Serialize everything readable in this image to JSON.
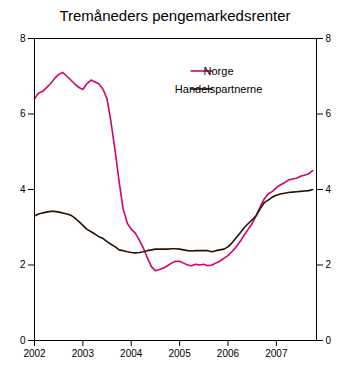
{
  "chart_data": {
    "type": "line",
    "title": "Tremåneders pengemarkedsrenter",
    "x": [
      2002.0,
      2002.08,
      2002.17,
      2002.25,
      2002.33,
      2002.42,
      2002.5,
      2002.58,
      2002.67,
      2002.75,
      2002.83,
      2002.92,
      2003.0,
      2003.08,
      2003.17,
      2003.25,
      2003.33,
      2003.42,
      2003.5,
      2003.58,
      2003.67,
      2003.75,
      2003.83,
      2003.92,
      2004.0,
      2004.08,
      2004.17,
      2004.25,
      2004.33,
      2004.42,
      2004.5,
      2004.58,
      2004.67,
      2004.75,
      2004.83,
      2004.92,
      2005.0,
      2005.08,
      2005.17,
      2005.25,
      2005.33,
      2005.42,
      2005.5,
      2005.58,
      2005.67,
      2005.75,
      2005.83,
      2005.92,
      2006.0,
      2006.08,
      2006.17,
      2006.25,
      2006.33,
      2006.42,
      2006.5,
      2006.58,
      2006.67,
      2006.75,
      2006.83,
      2006.92,
      2007.0,
      2007.08,
      2007.17,
      2007.25,
      2007.33,
      2007.42,
      2007.5,
      2007.58,
      2007.67,
      2007.75
    ],
    "series": [
      {
        "name": "Norge",
        "color": "#d4006e",
        "values": [
          6.4,
          6.55,
          6.6,
          6.7,
          6.8,
          6.95,
          7.05,
          7.1,
          7.0,
          6.9,
          6.8,
          6.7,
          6.65,
          6.8,
          6.9,
          6.85,
          6.8,
          6.65,
          6.4,
          5.8,
          5.0,
          4.2,
          3.5,
          3.1,
          2.95,
          2.85,
          2.65,
          2.45,
          2.2,
          1.95,
          1.85,
          1.88,
          1.92,
          1.98,
          2.05,
          2.1,
          2.1,
          2.05,
          2.0,
          1.98,
          2.02,
          2.0,
          2.02,
          1.98,
          2.0,
          2.05,
          2.1,
          2.18,
          2.25,
          2.35,
          2.48,
          2.62,
          2.78,
          2.95,
          3.1,
          3.3,
          3.55,
          3.75,
          3.88,
          3.95,
          4.05,
          4.12,
          4.18,
          4.25,
          4.28,
          4.3,
          4.35,
          4.38,
          4.42,
          4.5
        ]
      },
      {
        "name": "Handelspartnerne",
        "color": "#2b1100",
        "values": [
          3.3,
          3.35,
          3.38,
          3.4,
          3.42,
          3.42,
          3.4,
          3.38,
          3.35,
          3.32,
          3.25,
          3.15,
          3.05,
          2.95,
          2.88,
          2.82,
          2.75,
          2.7,
          2.62,
          2.55,
          2.48,
          2.4,
          2.38,
          2.35,
          2.33,
          2.32,
          2.33,
          2.35,
          2.38,
          2.4,
          2.42,
          2.42,
          2.42,
          2.42,
          2.43,
          2.43,
          2.42,
          2.4,
          2.38,
          2.37,
          2.38,
          2.38,
          2.38,
          2.38,
          2.35,
          2.38,
          2.4,
          2.42,
          2.48,
          2.58,
          2.72,
          2.85,
          2.98,
          3.1,
          3.2,
          3.3,
          3.5,
          3.65,
          3.72,
          3.8,
          3.85,
          3.88,
          3.9,
          3.92,
          3.93,
          3.94,
          3.95,
          3.96,
          3.97,
          4.0
        ]
      }
    ],
    "xlim": [
      2002.0,
      2007.83
    ],
    "xticks": [
      2002,
      2003,
      2004,
      2005,
      2006,
      2007
    ],
    "ylim": [
      0,
      8
    ],
    "yticks": [
      0,
      2,
      4,
      6,
      8
    ],
    "y2lim": [
      0,
      8
    ],
    "y2ticks": [
      0,
      2,
      4,
      6,
      8
    ],
    "legend": "upper right",
    "grid": false
  }
}
